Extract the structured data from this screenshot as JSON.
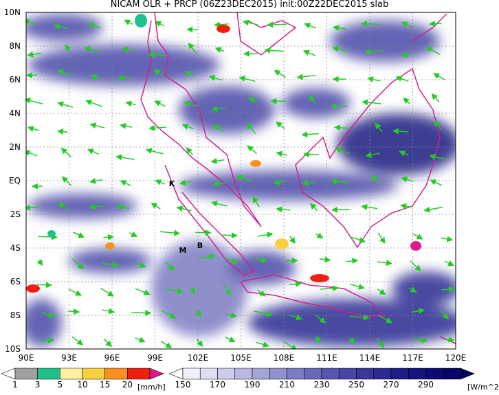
{
  "title": "NICAM OLR + PRCP (06Z23DEC2015) init:00Z22DEC2015 slab",
  "lat_labels": [
    "10N",
    "8N",
    "6N",
    "4N",
    "2N",
    "EQ",
    "2S",
    "4S",
    "6S",
    "8S",
    "10S"
  ],
  "lon_labels": [
    "90E",
    "93E",
    "96E",
    "99E",
    "102E",
    "105E",
    "108E",
    "111E",
    "114E",
    "117E",
    "120E"
  ],
  "markers": [
    "K",
    "M",
    "B"
  ],
  "precip_colorbar": {
    "labels": [
      1,
      3,
      5,
      10,
      15,
      20
    ],
    "unit": "[mm/h]",
    "colors": [
      "#ffffff",
      "#a0a0a0",
      "#20c08c",
      "#fff0a0",
      "#f8d040",
      "#f89020",
      "#f02010",
      "#e01890"
    ]
  },
  "olr_colorbar": {
    "labels": [
      150,
      170,
      190,
      210,
      230,
      250,
      270,
      290
    ],
    "unit": "[W/m^2]",
    "colors": [
      "#ffffff",
      "#f0f0fa",
      "#e0e0f4",
      "#ccccec",
      "#b8b8e2",
      "#a4a4d8",
      "#9090ce",
      "#7c7cc4",
      "#6868ba",
      "#5656b0",
      "#4646a6",
      "#38389c",
      "#2a2a92",
      "#1e1e88",
      "#14147e",
      "#0c0c74",
      "#06066a",
      "#000060"
    ]
  }
}
